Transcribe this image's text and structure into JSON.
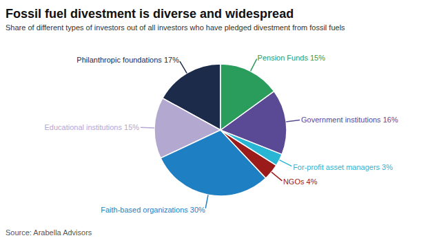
{
  "chart_data": {
    "type": "pie",
    "title": "Fossil fuel divestment is diverse and widespread",
    "subtitle": "Share of different types of investors out of all investors who have pledged divestment from fossil fuels",
    "source": "Source: Arabella Advisors",
    "categories": [
      "Philanthropic foundations 17%",
      "Educational institutions 15%",
      "Faith-based organizations 30%",
      "NGOs 4%",
      "For-profit asset managers 3%",
      "Government institutions 16%",
      "Pension Funds 15%"
    ],
    "values": [
      17,
      15,
      30,
      4,
      3,
      16,
      15
    ],
    "colors": [
      "#1c2b4a",
      "#b3a8d0",
      "#1e7fc2",
      "#9b1b1b",
      "#29b6d4",
      "#5a4a96",
      "#2a9d5c"
    ]
  }
}
